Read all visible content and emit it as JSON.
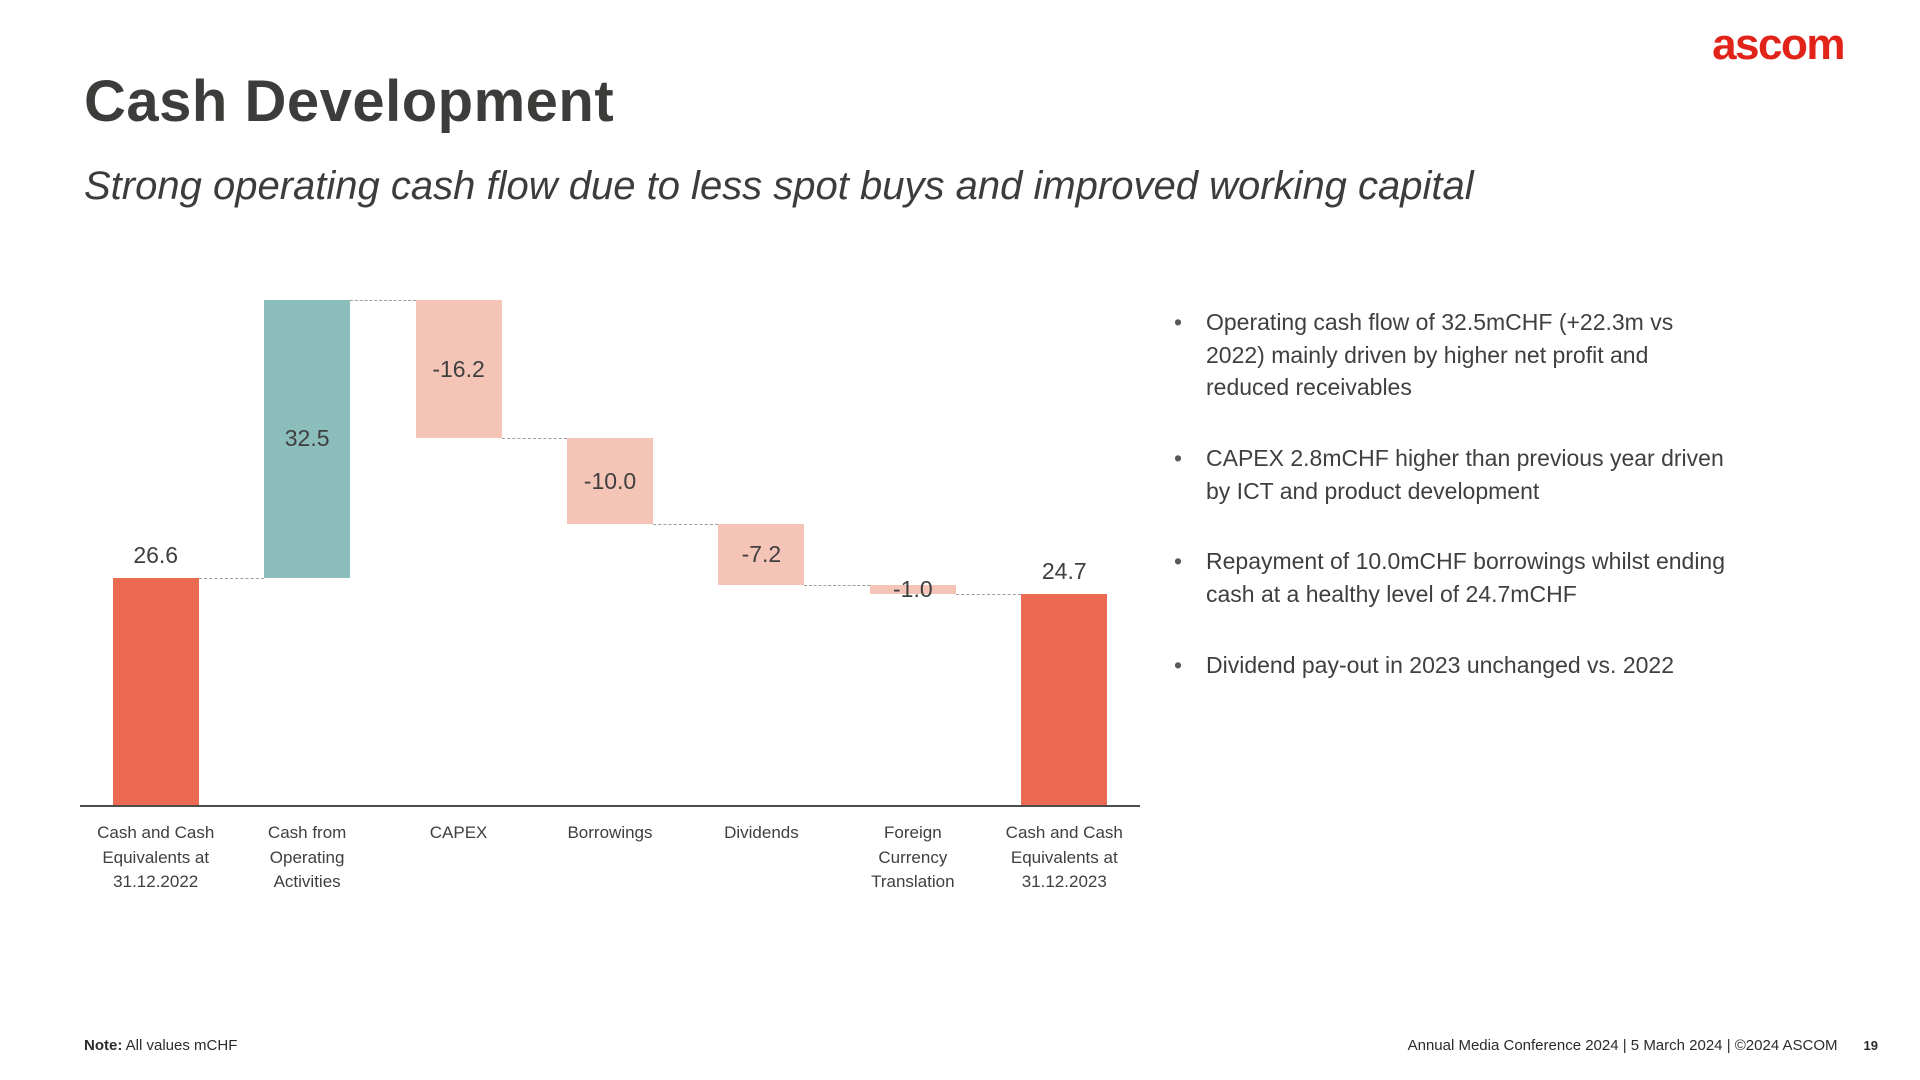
{
  "header": {
    "logo": "ascom",
    "title": "Cash Development",
    "subtitle": "Strong operating cash flow due to less spot buys and improved working capital"
  },
  "chart_data": {
    "type": "bar",
    "subtype": "waterfall",
    "title": "Cash Development waterfall",
    "unit": "mCHF",
    "ylim": [
      0,
      59.1
    ],
    "grid": false,
    "legend": "none",
    "categories": [
      "Cash and Cash Equivalents at 31.12.2022",
      "Cash from Operating Activities",
      "CAPEX",
      "Borrowings",
      "Dividends",
      "Foreign Currency Translation",
      "Cash and Cash Equivalents at 31.12.2023"
    ],
    "values": [
      26.6,
      32.5,
      -16.2,
      -10.0,
      -7.2,
      -1.0,
      24.7
    ],
    "cumulative_levels": [
      26.6,
      59.1,
      42.9,
      32.9,
      25.7,
      24.7,
      24.7
    ],
    "steps": [
      {
        "category_lines": [
          "Cash and Cash",
          "Equivalents at",
          "31.12.2022"
        ],
        "value": 26.6,
        "label": "26.6",
        "kind": "total",
        "color_key": "total"
      },
      {
        "category_lines": [
          "Cash from",
          "Operating",
          "Activities"
        ],
        "value": 32.5,
        "label": "32.5",
        "kind": "relative",
        "color_key": "increase"
      },
      {
        "category_lines": [
          "CAPEX"
        ],
        "value": -16.2,
        "label": "-16.2",
        "kind": "relative",
        "color_key": "decrease"
      },
      {
        "category_lines": [
          "Borrowings"
        ],
        "value": -10.0,
        "label": "-10.0",
        "kind": "relative",
        "color_key": "decrease"
      },
      {
        "category_lines": [
          "Dividends"
        ],
        "value": -7.2,
        "label": "-7.2",
        "kind": "relative",
        "color_key": "decrease"
      },
      {
        "category_lines": [
          "Foreign",
          "Currency",
          "Translation"
        ],
        "value": -1.0,
        "label": "-1.0",
        "kind": "relative",
        "color_key": "decrease"
      },
      {
        "category_lines": [
          "Cash and Cash",
          "Equivalents at",
          "31.12.2023"
        ],
        "value": 24.7,
        "label": "24.7",
        "kind": "total",
        "color_key": "total"
      }
    ],
    "colors": {
      "total": "#EC6A52",
      "increase": "#8BBEBA",
      "decrease": "#F4C5B6",
      "connector": "#9e9e9e",
      "axis": "#4d4d4d"
    }
  },
  "bullets": [
    "Operating cash flow of 32.5mCHF (+22.3m vs 2022) mainly driven by higher net profit and reduced receivables",
    "CAPEX 2.8mCHF higher than previous year driven by ICT and product development",
    "Repayment of 10.0mCHF borrowings whilst ending cash at a healthy level of 24.7mCHF",
    "Dividend pay-out in 2023 unchanged vs. 2022"
  ],
  "footer": {
    "note_label": "Note:",
    "note_text": "All values mCHF",
    "conference": "Annual Media Conference 2024 | 5 March 2024 | ©2024 ASCOM",
    "page_number": "19"
  }
}
